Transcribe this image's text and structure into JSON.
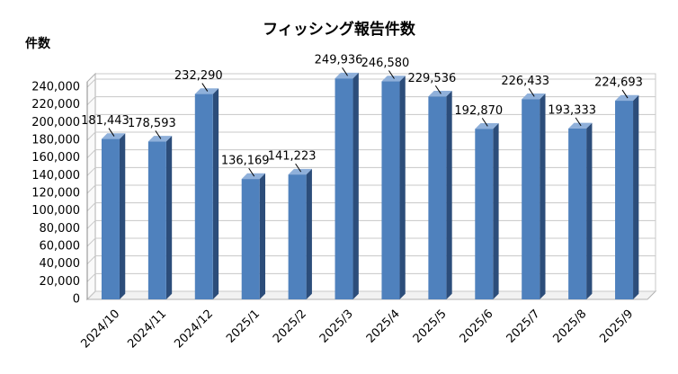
{
  "chart_data": {
    "type": "bar3d",
    "title": "フィッシング報告件数",
    "y_label": "件数",
    "categories": [
      "2024/10",
      "2024/11",
      "2024/12",
      "2025/1",
      "2025/2",
      "2025/3",
      "2025/4",
      "2025/5",
      "2025/6",
      "2025/7",
      "2025/8",
      "2025/9"
    ],
    "values": [
      181443,
      178593,
      232290,
      136169,
      141223,
      249936,
      246580,
      229536,
      192870,
      226433,
      193333,
      224693
    ],
    "value_labels": [
      "181,443",
      "178,593",
      "232,290",
      "136,169",
      "141,223",
      "249,936",
      "246,580",
      "229,536",
      "192,870",
      "226,433",
      "193,333",
      "224,693"
    ],
    "color": "#4f81bd",
    "ylim": [
      0,
      240000
    ],
    "yticks": [
      0,
      {
        "value": 20000,
        "label": "20,000"
      },
      {
        "value": 40000,
        "label": "40,000"
      },
      {
        "value": 60000,
        "label": "60,000"
      },
      {
        "value": 80000,
        "label": "80,000"
      },
      {
        "value": 100000,
        "label": "100,000"
      },
      {
        "value": 120000,
        "label": "120,000"
      },
      {
        "value": 140000,
        "label": "140,000"
      },
      {
        "value": 160000,
        "label": "160,000"
      },
      {
        "value": 180000,
        "label": "180,000"
      },
      {
        "value": 200000,
        "label": "200,000"
      },
      {
        "value": 220000,
        "label": "220,000"
      },
      {
        "value": 240000,
        "label": "240,000"
      }
    ],
    "grid": true
  }
}
